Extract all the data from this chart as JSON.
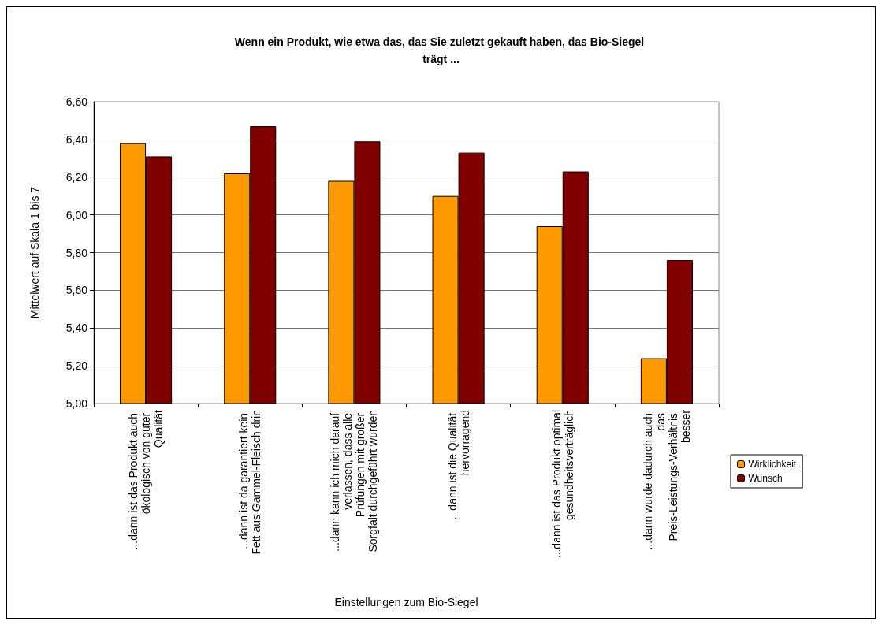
{
  "chart_data": {
    "type": "bar",
    "title": "Wenn ein Produkt, wie etwa das, das Sie zuletzt gekauft haben, das Bio-Siegel trägt ...",
    "xlabel": "Einstellungen zum Bio-Siegel",
    "ylabel": "Mittelwert auf Skala 1 bis 7",
    "categories": [
      "...dann ist das Produkt auch ökologisch von guter Qualität",
      "...dann ist da garantiert kein Fett aus Gammel-Fleisch drin",
      "...dann kann ich mich darauf verlassen, dass alle Prüfungen mit großer Sorgfalt durchgeführt wurden",
      "...dann ist die Qualität hervorragend",
      "...dann ist das Produkt optimal gesundheitsverträglich",
      "...dann wurde dadurch auch das Preis-Leistungs-Verhältnis besser"
    ],
    "series": [
      {
        "name": "Wirklichkeit",
        "color": "#ff9900",
        "values": [
          6.38,
          6.22,
          6.18,
          6.1,
          5.94,
          5.24
        ]
      },
      {
        "name": "Wunsch",
        "color": "#800000",
        "values": [
          6.31,
          6.47,
          6.39,
          6.33,
          6.23,
          5.76
        ]
      }
    ],
    "ylim": [
      5.0,
      6.6
    ],
    "yticks": [
      {
        "value": 5.0,
        "label": "5,00"
      },
      {
        "value": 5.2,
        "label": "5,20"
      },
      {
        "value": 5.4,
        "label": "5,40"
      },
      {
        "value": 5.6,
        "label": "5,60"
      },
      {
        "value": 5.8,
        "label": "5,80"
      },
      {
        "value": 6.0,
        "label": "6,00"
      },
      {
        "value": 6.2,
        "label": "6,20"
      },
      {
        "value": 6.4,
        "label": "6,40"
      },
      {
        "value": 6.6,
        "label": "6,60"
      }
    ],
    "grid": "y",
    "legend": "bottom right"
  }
}
